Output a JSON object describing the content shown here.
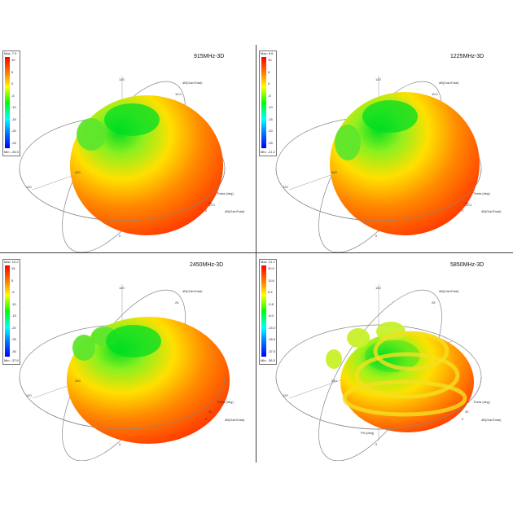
{
  "chart_data": [
    {
      "type": "3d-radiation-pattern",
      "title": "915MHz-3D",
      "legend": {
        "max_label": "Max: 7.9",
        "min_label": "Min: -28.3",
        "ticks": [
          "10",
          "5",
          "0",
          "-5",
          "-10",
          "-15",
          "-20",
          "-25"
        ]
      },
      "axis_labels": {
        "theta_label": "Theta (deg)",
        "quantity_label": "dB(GainTotal)",
        "quantity_label_top": "dB(GainTotal)",
        "ring_value": "10.0",
        "ring_value_2": "12.9",
        "angle_120": "120",
        "angle_240": "240",
        "angle_120b": "120",
        "angle_0": "0",
        "angle_0b": "0",
        "angle_30": "30"
      },
      "colors": {
        "high": "#ff1a00",
        "mid": "#ffe000",
        "low": "#00dd22"
      }
    },
    {
      "type": "3d-radiation-pattern",
      "title": "1225MHz-3D",
      "legend": {
        "max_label": "Max: 8.6",
        "min_label": "Min: -21.2",
        "ticks": [
          "10",
          "5",
          "0",
          "-5",
          "-10",
          "-15",
          "-20",
          "-25"
        ]
      },
      "axis_labels": {
        "theta_label": "Theta (deg)",
        "quantity_label": "dB(GainTotal)",
        "quantity_label_top": "dB(GainTotal)",
        "ring_value": "10.0",
        "ring_value_2": "12.9",
        "angle_120": "120",
        "angle_240": "240",
        "angle_120b": "120",
        "angle_0": "0",
        "angle_0b": "0",
        "angle_30": "30"
      },
      "colors": {
        "high": "#ff1a00",
        "mid": "#ffe000",
        "low": "#00dd22"
      }
    },
    {
      "type": "3d-radiation-pattern",
      "title": "2450MHz-3D",
      "legend": {
        "max_label": "Max: 10.2",
        "min_label": "Min: -37.6",
        "ticks": [
          "15",
          "5",
          "-5",
          "-10",
          "-15",
          "-20",
          "-25",
          "-30"
        ]
      },
      "axis_labels": {
        "theta_label": "Theta (deg)",
        "quantity_label": "dB(GainTotal)",
        "quantity_label_top": "dB(GainTotal)",
        "ring_value": "25",
        "ring_value_2": "",
        "angle_120": "120",
        "angle_240": "240",
        "angle_120b": "120",
        "angle_0": "0",
        "angle_0b": "0",
        "angle_30": "30"
      },
      "colors": {
        "high": "#ff1a00",
        "mid": "#ffe000",
        "low": "#00dd22"
      }
    },
    {
      "type": "3d-radiation-pattern",
      "title": "5850MHz-3D",
      "legend": {
        "max_label": "Max: 21.1",
        "min_label": "Min: -36.5",
        "ticks": [
          "20.0",
          "13.6",
          "6.4",
          "-0.8",
          "-8.0",
          "-15.2",
          "-28.0",
          "-37.5"
        ]
      },
      "axis_labels": {
        "theta_label": "Theta (deg)",
        "quantity_label": "dB(GainTotal)",
        "quantity_label_top": "dB(GainTotal)",
        "ring_value": "25",
        "ring_value_2": "",
        "angle_120": "120",
        "angle_240": "240",
        "angle_120b": "120",
        "angle_0": "0",
        "angle_0b": "0",
        "angle_30": "30",
        "phi_label": "Phi (deg)"
      },
      "colors": {
        "high": "#ff1a00",
        "mid": "#ffe000",
        "low": "#00dd22"
      }
    }
  ]
}
